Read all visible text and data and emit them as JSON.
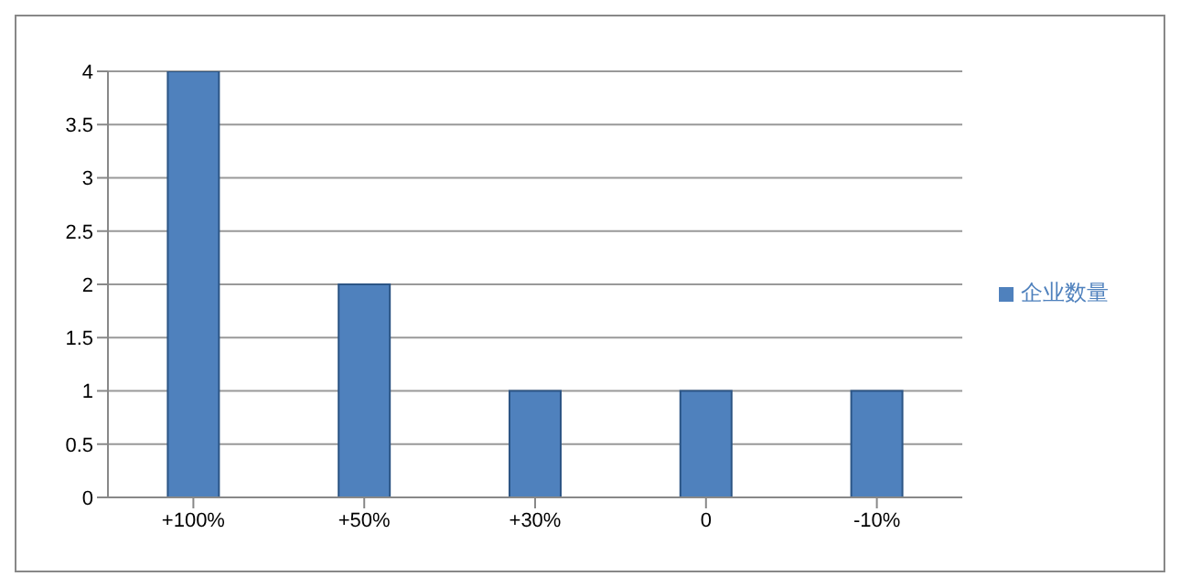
{
  "chart_data": {
    "type": "bar",
    "categories": [
      "+100%",
      "+50%",
      "+30%",
      "0",
      "-10%"
    ],
    "series": [
      {
        "name": "企业数量",
        "color": "#4f81bd",
        "values": [
          4,
          2,
          1,
          1,
          1
        ]
      }
    ],
    "ylim": [
      0,
      4
    ],
    "yticks": [
      0,
      0.5,
      1,
      1.5,
      2,
      2.5,
      3,
      3.5,
      4
    ],
    "grid": "y",
    "legend": "right"
  }
}
